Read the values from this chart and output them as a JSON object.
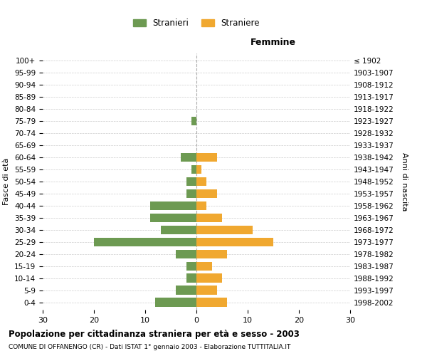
{
  "age_groups": [
    "0-4",
    "5-9",
    "10-14",
    "15-19",
    "20-24",
    "25-29",
    "30-34",
    "35-39",
    "40-44",
    "45-49",
    "50-54",
    "55-59",
    "60-64",
    "65-69",
    "70-74",
    "75-79",
    "80-84",
    "85-89",
    "90-94",
    "95-99",
    "100+"
  ],
  "birth_years": [
    "1998-2002",
    "1993-1997",
    "1988-1992",
    "1983-1987",
    "1978-1982",
    "1973-1977",
    "1968-1972",
    "1963-1967",
    "1958-1962",
    "1953-1957",
    "1948-1952",
    "1943-1947",
    "1938-1942",
    "1933-1937",
    "1928-1932",
    "1923-1927",
    "1918-1922",
    "1913-1917",
    "1908-1912",
    "1903-1907",
    "≤ 1902"
  ],
  "males": [
    8,
    4,
    2,
    2,
    4,
    20,
    7,
    9,
    9,
    2,
    2,
    1,
    3,
    0,
    0,
    1,
    0,
    0,
    0,
    0,
    0
  ],
  "females": [
    6,
    4,
    5,
    3,
    6,
    15,
    11,
    5,
    2,
    4,
    2,
    1,
    4,
    0,
    0,
    0,
    0,
    0,
    0,
    0,
    0
  ],
  "male_color": "#6d9a52",
  "female_color": "#f0a830",
  "title": "Popolazione per cittadinanza straniera per età e sesso - 2003",
  "subtitle": "COMUNE DI OFFANENGO (CR) - Dati ISTAT 1° gennaio 2003 - Elaborazione TUTTITALIA.IT",
  "xlabel_right": "Femmine",
  "ylabel_left": "Fasce di età",
  "ylabel_right": "Anni di nascita",
  "xlim": 30,
  "legend_male": "Stranieri",
  "legend_female": "Straniere",
  "background_color": "#ffffff",
  "grid_color": "#cccccc",
  "tick_fontsize": 7.5,
  "bar_height": 0.75
}
